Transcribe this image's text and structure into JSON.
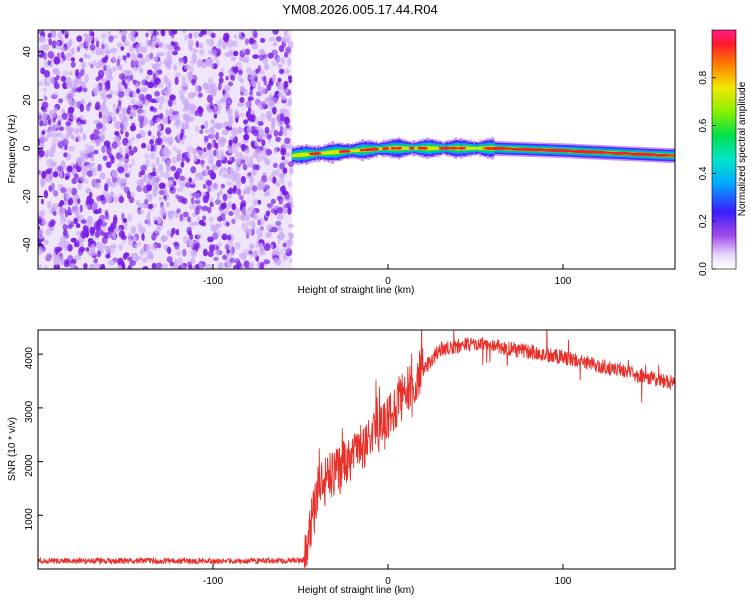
{
  "title": "YM08.2026.005.17.44.R04",
  "colors": {
    "noise": "#7a1fe6",
    "noise_light": "#c9a6f5",
    "snr_line": "#e8302a",
    "axes": "#000000"
  },
  "chart_data": [
    {
      "type": "heatmap",
      "name": "spectrogram",
      "xlabel": "Height of straight line (km)",
      "ylabel": "Frequency (Hz)",
      "xlim": [
        -200,
        164
      ],
      "ylim": [
        -50,
        49
      ],
      "xticks": [
        {
          "value": -100,
          "label": "-100"
        },
        {
          "value": 0,
          "label": "0"
        },
        {
          "value": 100,
          "label": "100"
        }
      ],
      "yticks": [
        {
          "value": 40,
          "label": "40"
        },
        {
          "value": 20,
          "label": "20"
        },
        {
          "value": 0,
          "label": "0"
        },
        {
          "value": -20,
          "label": "-20"
        },
        {
          "value": -40,
          "label": "-40"
        }
      ],
      "noise_region_x": [
        -200,
        -55
      ],
      "signal_start_x": -55,
      "signal_center_freq": [
        {
          "x": -55,
          "y": -3
        },
        {
          "x": -20,
          "y": -1
        },
        {
          "x": 0,
          "y": 0
        },
        {
          "x": 60,
          "y": 0
        },
        {
          "x": 100,
          "y": -1
        },
        {
          "x": 160,
          "y": -3
        }
      ],
      "colorbar": {
        "label": "Normalized spectral amplitude",
        "range": [
          0,
          1
        ],
        "ticks": [
          {
            "value": 0.0,
            "label": "0.0"
          },
          {
            "value": 0.2,
            "label": "0.2"
          },
          {
            "value": 0.4,
            "label": "0.4"
          },
          {
            "value": 0.6,
            "label": "0.6"
          },
          {
            "value": 0.8,
            "label": "0.8"
          }
        ]
      }
    },
    {
      "type": "line",
      "name": "snr",
      "xlabel": "Height of straight line (km)",
      "ylabel": "SNR (10 * v/v)",
      "xlim": [
        -200,
        164
      ],
      "ylim": [
        0,
        4450
      ],
      "xticks": [
        {
          "value": -100,
          "label": "-100"
        },
        {
          "value": 0,
          "label": "0"
        },
        {
          "value": 100,
          "label": "100"
        }
      ],
      "yticks": [
        {
          "value": 1000,
          "label": "1000"
        },
        {
          "value": 2000,
          "label": "2000"
        },
        {
          "value": 3000,
          "label": "3000"
        },
        {
          "value": 4000,
          "label": "4000"
        }
      ],
      "trend": [
        {
          "x": -200,
          "y": 150
        },
        {
          "x": -48,
          "y": 150
        },
        {
          "x": -40,
          "y": 1500
        },
        {
          "x": -25,
          "y": 2000
        },
        {
          "x": -10,
          "y": 2400
        },
        {
          "x": 10,
          "y": 3300
        },
        {
          "x": 30,
          "y": 4100
        },
        {
          "x": 50,
          "y": 4200
        },
        {
          "x": 100,
          "y": 3950
        },
        {
          "x": 164,
          "y": 3450
        }
      ]
    }
  ]
}
